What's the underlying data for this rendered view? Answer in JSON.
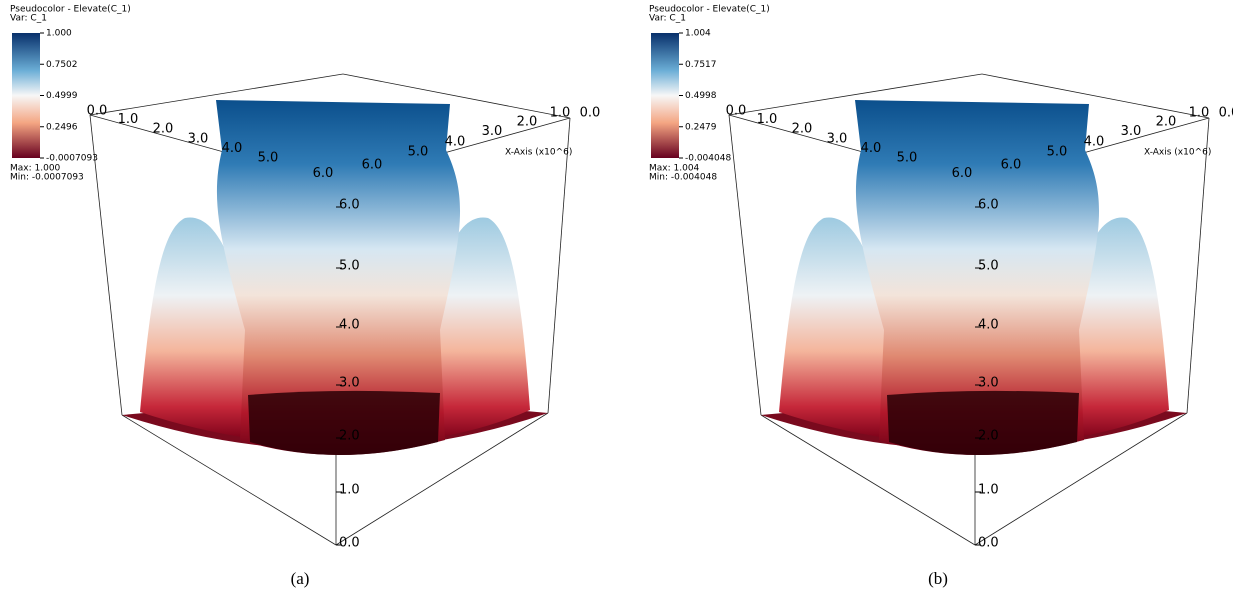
{
  "panels": [
    {
      "legend_title": "Pseudocolor - Elevate(C_1)",
      "legend_var": "Var: C_1",
      "colorbar_labels": [
        "1.000",
        "0.7502",
        "0.4999",
        "0.2496",
        "-0.0007093"
      ],
      "max_label": "Max:  1.000",
      "min_label": "Min: -0.0007093",
      "vertical_axis_labels": [
        "0.0",
        "1.0",
        "2.0",
        "3.0",
        "4.0",
        "5.0",
        "6.0"
      ],
      "left_edge_labels": [
        "0.0",
        "1.0",
        "2.0",
        "3.0",
        "4.0",
        "5.0",
        "6.0"
      ],
      "right_edge_labels": [
        "6.0",
        "5.0",
        "4.0",
        "3.0",
        "2.0",
        "1.0",
        "0.0"
      ],
      "x_axis_title": "X-Axis (x10^6)",
      "caption": "(a)"
    },
    {
      "legend_title": "Pseudocolor - Elevate(C_1)",
      "legend_var": "Var: C_1",
      "colorbar_labels": [
        "1.004",
        "0.7517",
        "0.4998",
        "0.2479",
        "-0.004048"
      ],
      "max_label": "Max:  1.004",
      "min_label": "Min: -0.004048",
      "vertical_axis_labels": [
        "0.0",
        "1.0",
        "2.0",
        "3.0",
        "4.0",
        "5.0",
        "6.0"
      ],
      "left_edge_labels": [
        "0.0",
        "1.0",
        "2.0",
        "3.0",
        "4.0",
        "5.0",
        "6.0"
      ],
      "right_edge_labels": [
        "6.0",
        "5.0",
        "4.0",
        "3.0",
        "2.0",
        "1.0",
        "0.0"
      ],
      "x_axis_title": "X-Axis (x10^6)",
      "caption": "(b)"
    }
  ]
}
